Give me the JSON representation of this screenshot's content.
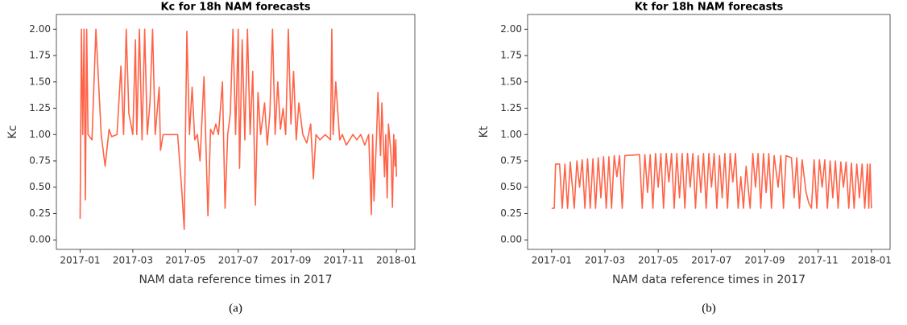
{
  "chart_data": [
    {
      "type": "line",
      "title": "Kc for 18h NAM forecasts",
      "xlabel": "NAM data reference times in 2017",
      "ylabel": "Kc",
      "caption": "(a)",
      "color": "#ff6347",
      "xlim": [
        -0.9,
        12.7
      ],
      "ylim": [
        -0.09,
        2.14
      ],
      "xticks": [
        {
          "value": 0,
          "label": "2017-01"
        },
        {
          "value": 2,
          "label": "2017-03"
        },
        {
          "value": 4,
          "label": "2017-05"
        },
        {
          "value": 6,
          "label": "2017-07"
        },
        {
          "value": 8,
          "label": "2017-09"
        },
        {
          "value": 10,
          "label": "2017-11"
        },
        {
          "value": 12,
          "label": "2018-01"
        }
      ],
      "yticks": [
        {
          "value": 0,
          "label": "0.00"
        },
        0.25,
        {
          "value": 0.5,
          "label": "0.50"
        },
        0.75,
        {
          "value": 1,
          "label": "1.00"
        },
        1.25,
        {
          "value": 1.5,
          "label": "1.50"
        },
        1.75,
        {
          "value": 2,
          "label": "2.00"
        }
      ],
      "x": [
        0.0,
        0.05,
        0.1,
        0.15,
        0.2,
        0.25,
        0.3,
        0.45,
        0.6,
        0.8,
        0.95,
        1.1,
        1.2,
        1.4,
        1.55,
        1.65,
        1.75,
        1.85,
        2.0,
        2.1,
        2.15,
        2.25,
        2.35,
        2.45,
        2.55,
        2.65,
        2.75,
        2.85,
        3.0,
        3.05,
        3.15,
        3.5,
        3.7,
        3.85,
        3.95,
        4.05,
        4.15,
        4.25,
        4.35,
        4.45,
        4.55,
        4.7,
        4.85,
        4.95,
        5.05,
        5.15,
        5.25,
        5.4,
        5.5,
        5.6,
        5.7,
        5.8,
        5.9,
        6.0,
        6.05,
        6.15,
        6.25,
        6.35,
        6.45,
        6.55,
        6.65,
        6.75,
        6.85,
        7.0,
        7.1,
        7.2,
        7.3,
        7.4,
        7.5,
        7.6,
        7.7,
        7.8,
        7.9,
        8.0,
        8.1,
        8.2,
        8.3,
        8.45,
        8.6,
        8.75,
        8.85,
        8.95,
        9.1,
        9.3,
        9.5,
        9.55,
        9.6,
        9.7,
        9.85,
        9.95,
        10.1,
        10.35,
        10.5,
        10.65,
        10.8,
        10.95,
        11.05,
        11.1,
        11.15,
        11.25,
        11.3,
        11.4,
        11.45,
        11.55,
        11.6,
        11.65,
        11.7,
        11.8,
        11.85,
        11.9,
        11.95,
        11.98,
        12.0
      ],
      "values": [
        0.2,
        2.0,
        1.0,
        2.0,
        0.38,
        2.0,
        1.0,
        0.95,
        2.0,
        1.0,
        0.7,
        1.05,
        0.98,
        1.0,
        1.65,
        1.0,
        2.0,
        1.2,
        1.0,
        1.9,
        1.0,
        2.0,
        0.95,
        2.0,
        1.0,
        1.3,
        2.0,
        1.0,
        1.45,
        0.85,
        1.0,
        1.0,
        1.0,
        0.5,
        0.1,
        1.98,
        1.0,
        1.45,
        0.95,
        1.0,
        0.75,
        1.55,
        0.23,
        1.05,
        1.0,
        1.1,
        1.0,
        1.5,
        0.3,
        1.0,
        1.2,
        2.0,
        1.0,
        2.0,
        0.68,
        1.9,
        0.95,
        2.0,
        1.0,
        1.6,
        0.33,
        1.4,
        1.0,
        1.3,
        0.9,
        1.2,
        2.0,
        1.0,
        1.5,
        1.05,
        1.25,
        1.0,
        2.0,
        1.1,
        1.6,
        0.95,
        1.3,
        1.0,
        0.92,
        1.1,
        0.58,
        1.0,
        0.95,
        1.0,
        0.95,
        2.0,
        1.0,
        1.5,
        0.95,
        1.0,
        0.9,
        1.0,
        0.95,
        1.0,
        0.9,
        1.0,
        0.24,
        1.0,
        0.37,
        1.0,
        1.4,
        0.8,
        1.3,
        0.6,
        1.0,
        0.4,
        1.1,
        0.8,
        0.31,
        1.0,
        0.7,
        0.95,
        0.6
      ]
    },
    {
      "type": "line",
      "title": "Kt for 18h NAM forecasts",
      "xlabel": "NAM data reference times in 2017",
      "ylabel": "Kt",
      "caption": "(b)",
      "color": "#ff6347",
      "xlim": [
        -0.9,
        12.7
      ],
      "ylim": [
        -0.09,
        2.14
      ],
      "xticks": [
        {
          "value": 0,
          "label": "2017-01"
        },
        {
          "value": 2,
          "label": "2017-03"
        },
        {
          "value": 4,
          "label": "2017-05"
        },
        {
          "value": 6,
          "label": "2017-07"
        },
        {
          "value": 8,
          "label": "2017-09"
        },
        {
          "value": 10,
          "label": "2017-11"
        },
        {
          "value": 12,
          "label": "2018-01"
        }
      ],
      "yticks": [
        {
          "value": 0,
          "label": "0.00"
        },
        0.25,
        {
          "value": 0.5,
          "label": "0.50"
        },
        0.75,
        {
          "value": 1,
          "label": "1.00"
        },
        1.25,
        {
          "value": 1.5,
          "label": "1.50"
        },
        1.75,
        {
          "value": 2,
          "label": "2.00"
        }
      ],
      "x": [
        0,
        0.1,
        0.15,
        0.3,
        0.4,
        0.5,
        0.6,
        0.7,
        0.85,
        0.95,
        1.05,
        1.15,
        1.25,
        1.35,
        1.45,
        1.55,
        1.65,
        1.75,
        1.85,
        1.95,
        2.05,
        2.15,
        2.25,
        2.35,
        2.45,
        2.55,
        2.65,
        2.75,
        3.3,
        3.4,
        3.5,
        3.6,
        3.7,
        3.8,
        3.9,
        4.0,
        4.1,
        4.2,
        4.3,
        4.4,
        4.5,
        4.6,
        4.7,
        4.8,
        4.9,
        5.0,
        5.1,
        5.2,
        5.3,
        5.4,
        5.5,
        5.6,
        5.7,
        5.8,
        5.9,
        6.0,
        6.1,
        6.2,
        6.3,
        6.4,
        6.5,
        6.6,
        6.7,
        6.8,
        6.9,
        7.0,
        7.1,
        7.2,
        7.3,
        7.45,
        7.55,
        7.65,
        7.75,
        7.85,
        7.95,
        8.05,
        8.15,
        8.25,
        8.35,
        8.5,
        8.6,
        8.7,
        8.8,
        9.0,
        9.1,
        9.2,
        9.3,
        9.4,
        9.55,
        9.65,
        9.75,
        9.85,
        9.95,
        10.05,
        10.15,
        10.25,
        10.35,
        10.45,
        10.55,
        10.65,
        10.75,
        10.85,
        10.95,
        11.05,
        11.15,
        11.25,
        11.35,
        11.45,
        11.55,
        11.65,
        11.75,
        11.85,
        11.9,
        11.95,
        12.0
      ],
      "values": [
        0.3,
        0.3,
        0.72,
        0.72,
        0.3,
        0.72,
        0.3,
        0.74,
        0.3,
        0.75,
        0.5,
        0.76,
        0.3,
        0.77,
        0.3,
        0.77,
        0.3,
        0.78,
        0.4,
        0.79,
        0.3,
        0.79,
        0.3,
        0.8,
        0.6,
        0.8,
        0.3,
        0.8,
        0.81,
        0.3,
        0.81,
        0.45,
        0.81,
        0.3,
        0.82,
        0.5,
        0.82,
        0.3,
        0.82,
        0.55,
        0.82,
        0.3,
        0.82,
        0.4,
        0.82,
        0.3,
        0.82,
        0.5,
        0.82,
        0.3,
        0.8,
        0.45,
        0.82,
        0.3,
        0.82,
        0.5,
        0.82,
        0.3,
        0.8,
        0.4,
        0.82,
        0.3,
        0.82,
        0.55,
        0.82,
        0.3,
        0.6,
        0.3,
        0.7,
        0.3,
        0.82,
        0.5,
        0.82,
        0.3,
        0.82,
        0.45,
        0.82,
        0.3,
        0.8,
        0.5,
        0.8,
        0.3,
        0.8,
        0.78,
        0.4,
        0.78,
        0.3,
        0.76,
        0.45,
        0.35,
        0.3,
        0.76,
        0.3,
        0.76,
        0.5,
        0.76,
        0.3,
        0.75,
        0.4,
        0.75,
        0.3,
        0.74,
        0.5,
        0.74,
        0.3,
        0.73,
        0.3,
        0.72,
        0.4,
        0.72,
        0.3,
        0.72,
        0.3,
        0.72,
        0.3
      ]
    }
  ]
}
